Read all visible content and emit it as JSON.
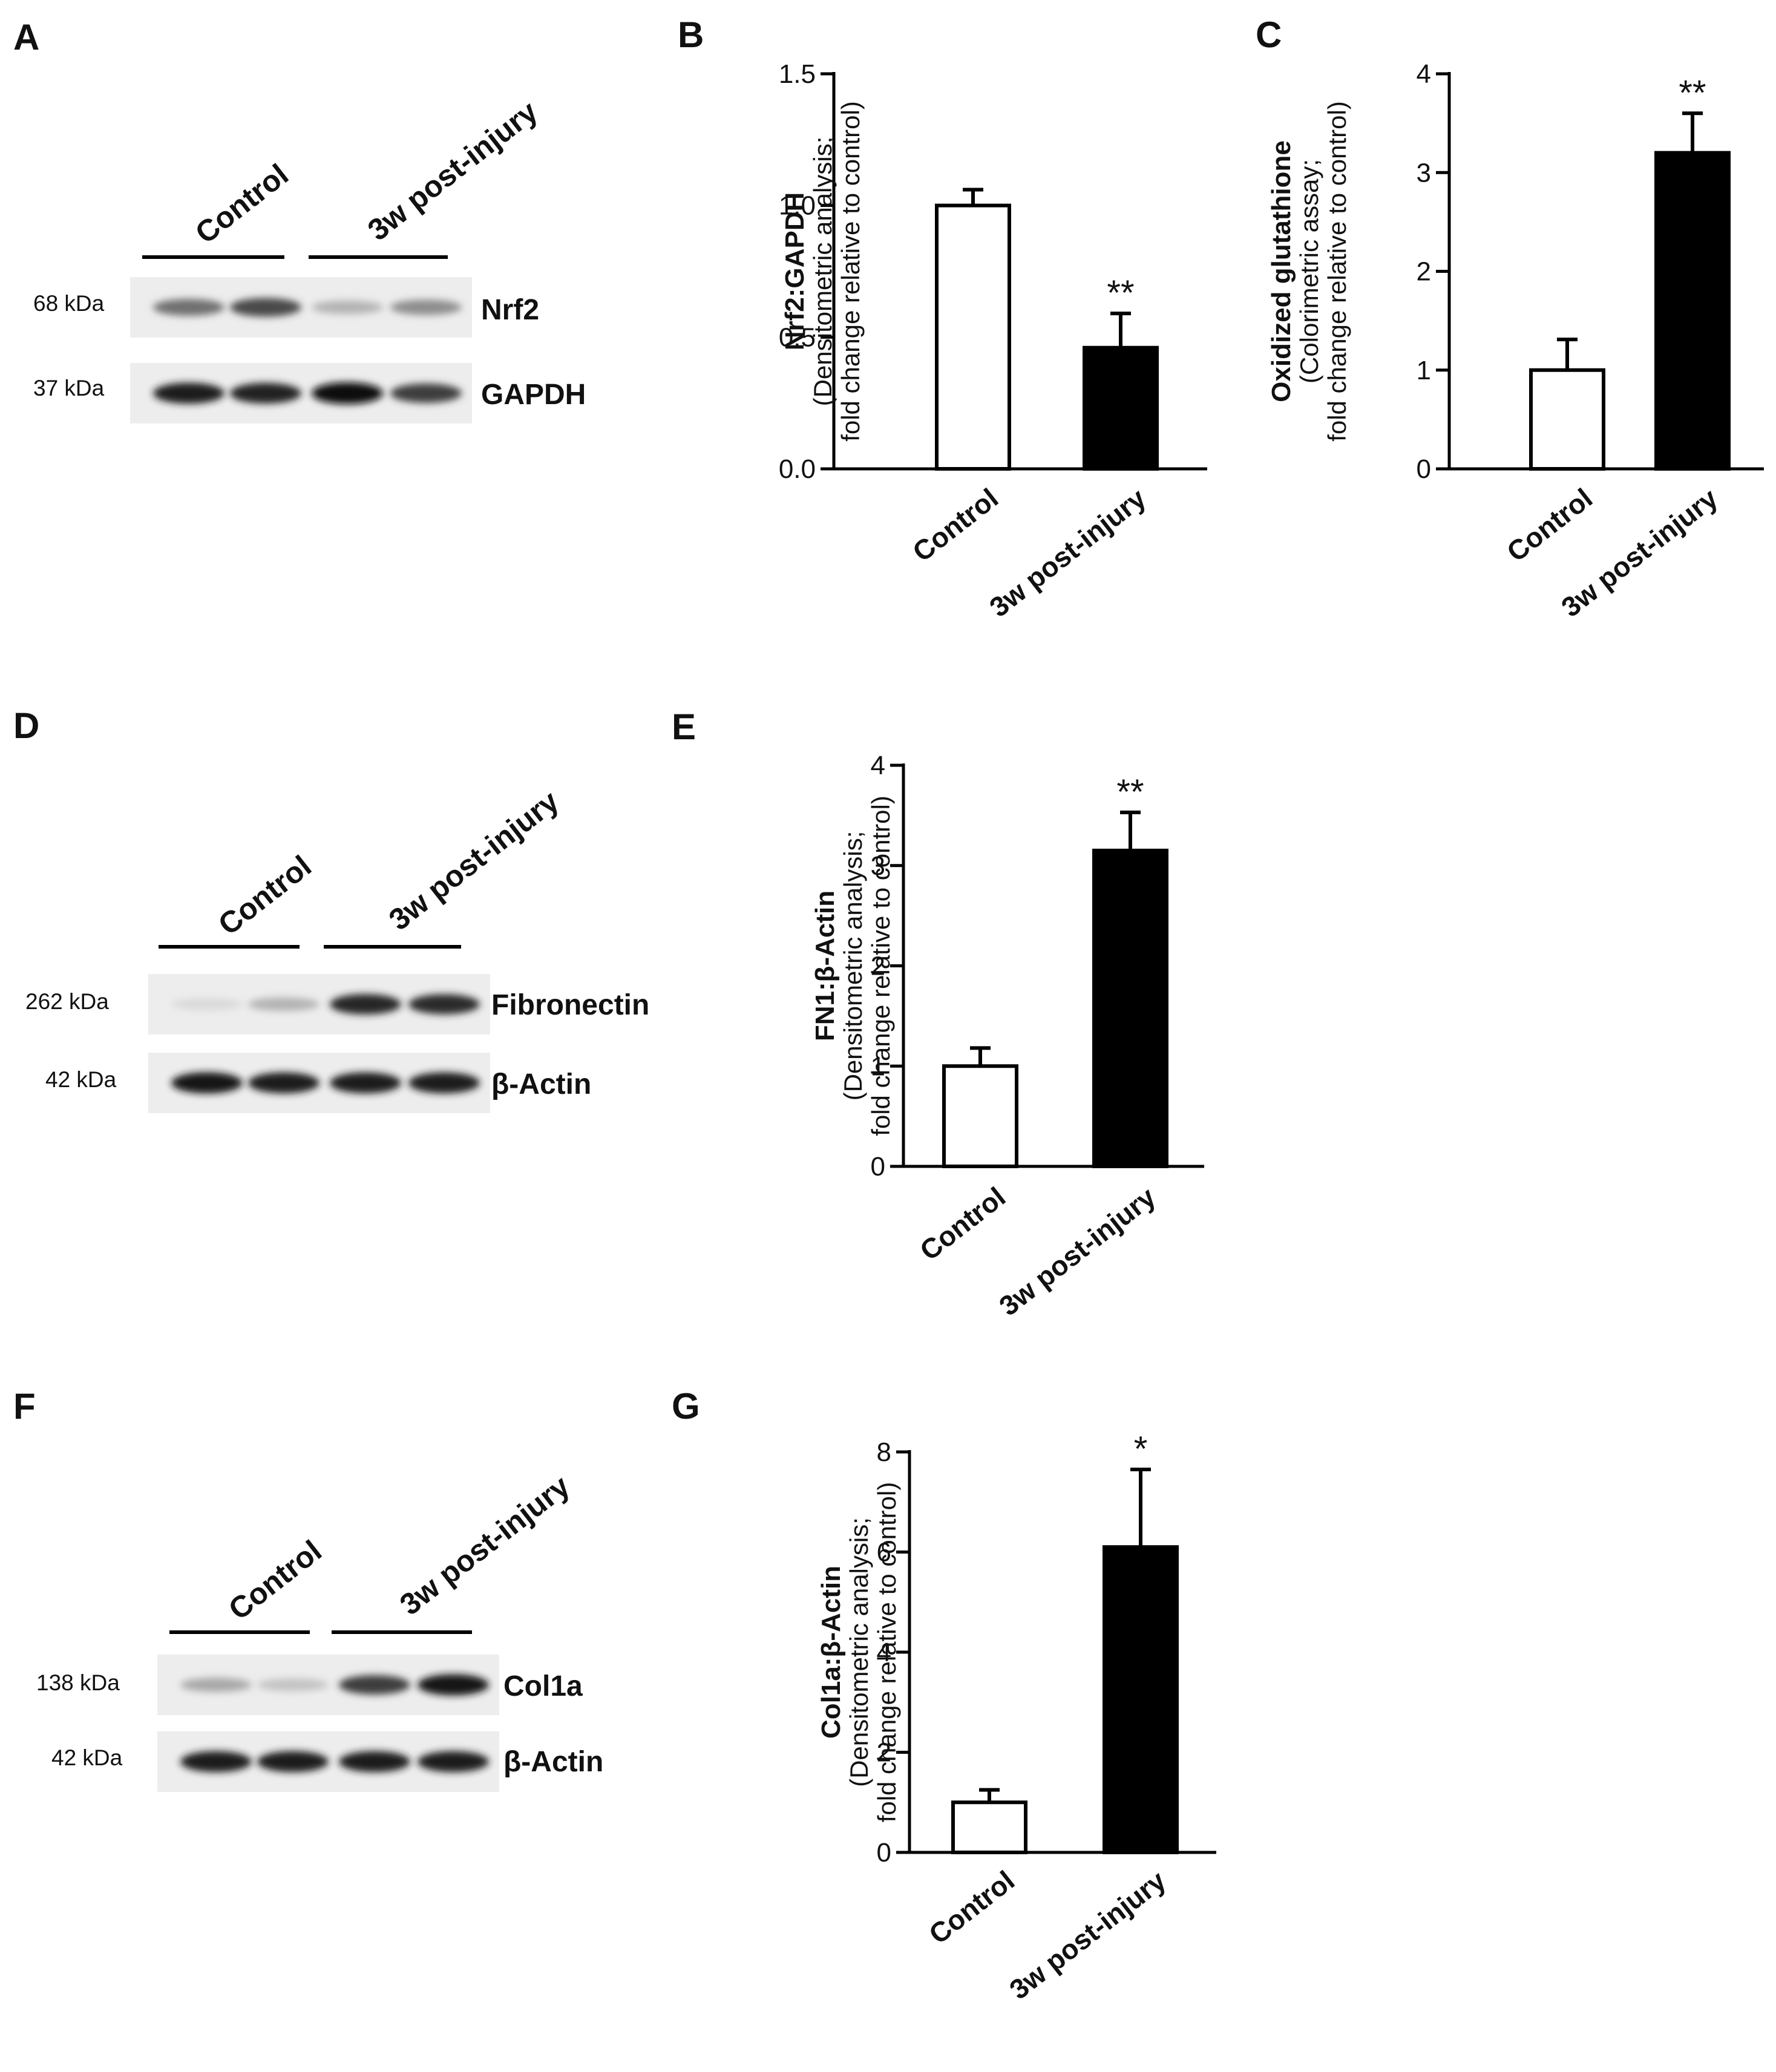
{
  "panels": {
    "A": {
      "letter": "A",
      "groups": [
        "Control",
        "3w post-injury"
      ],
      "rows": [
        {
          "kda": "68 kDa",
          "protein": "Nrf2"
        },
        {
          "kda": "37 kDa",
          "protein": "GAPDH"
        }
      ]
    },
    "D": {
      "letter": "D",
      "groups": [
        "Control",
        "3w post-injury"
      ],
      "rows": [
        {
          "kda": "262 kDa",
          "protein": "Fibronectin"
        },
        {
          "kda": "42 kDa",
          "protein": "β-Actin"
        }
      ]
    },
    "F": {
      "letter": "F",
      "groups": [
        "Control",
        "3w post-injury"
      ],
      "rows": [
        {
          "kda": "138 kDa",
          "protein": "Col1a"
        },
        {
          "kda": "42 kDa",
          "protein": "β-Actin"
        }
      ]
    }
  },
  "blots": {
    "A": [
      [
        0.55,
        0.72,
        0.25,
        0.42
      ],
      [
        0.92,
        0.9,
        1.0,
        0.78
      ]
    ],
    "D": [
      [
        0.08,
        0.25,
        0.88,
        0.85
      ],
      [
        0.95,
        0.93,
        0.93,
        0.93
      ]
    ],
    "F": [
      [
        0.3,
        0.18,
        0.78,
        0.95
      ],
      [
        0.93,
        0.93,
        0.93,
        0.93
      ]
    ]
  },
  "chart_data": [
    {
      "panel": "B",
      "letter": "B",
      "type": "bar",
      "categories": [
        "Control",
        "3w post-injury"
      ],
      "values": [
        1.0,
        0.46
      ],
      "errors": [
        0.06,
        0.13
      ],
      "fills": [
        "#ffffff",
        "#000000"
      ],
      "significance": [
        "",
        "**"
      ],
      "ylim": [
        0,
        1.5
      ],
      "yticks": [
        "0.0",
        "0.5",
        "1.0",
        "1.5"
      ],
      "ylabel_bold": "Nrf2:GAPDH",
      "ylabel_lines": [
        "(Densitometric analysis;",
        "fold change relative to control)"
      ]
    },
    {
      "panel": "C",
      "letter": "C",
      "type": "bar",
      "categories": [
        "Control",
        "3w post-injury"
      ],
      "values": [
        1.0,
        3.2
      ],
      "errors": [
        0.31,
        0.4
      ],
      "fills": [
        "#ffffff",
        "#000000"
      ],
      "significance": [
        "",
        "**"
      ],
      "ylim": [
        0,
        4
      ],
      "yticks": [
        "0",
        "1",
        "2",
        "3",
        "4"
      ],
      "ylabel_bold": "Oxidized glutathione",
      "ylabel_lines": [
        "(Colorimetric assay;",
        "fold change relative to control)"
      ]
    },
    {
      "panel": "E",
      "letter": "E",
      "type": "bar",
      "categories": [
        "Control",
        "3w post-injury"
      ],
      "values": [
        1.0,
        3.15
      ],
      "errors": [
        0.18,
        0.38
      ],
      "fills": [
        "#ffffff",
        "#000000"
      ],
      "significance": [
        "",
        "**"
      ],
      "ylim": [
        0,
        4
      ],
      "yticks": [
        "0",
        "1",
        "2",
        "3",
        "4"
      ],
      "ylabel_bold": "FN1:β-Actin",
      "ylabel_lines": [
        "(Densitometric analysis;",
        "fold change relative to control)"
      ]
    },
    {
      "panel": "G",
      "letter": "G",
      "type": "bar",
      "categories": [
        "Control",
        "3w post-injury"
      ],
      "values": [
        1.0,
        6.1
      ],
      "errors": [
        0.25,
        1.55
      ],
      "fills": [
        "#ffffff",
        "#000000"
      ],
      "significance": [
        "",
        "*"
      ],
      "ylim": [
        0,
        8
      ],
      "yticks": [
        "0",
        "2",
        "4",
        "6",
        "8"
      ],
      "ylabel_bold": "Col1a:β-Actin",
      "ylabel_lines": [
        "(Densitometric analysis;",
        "fold change relative to control)"
      ]
    }
  ]
}
